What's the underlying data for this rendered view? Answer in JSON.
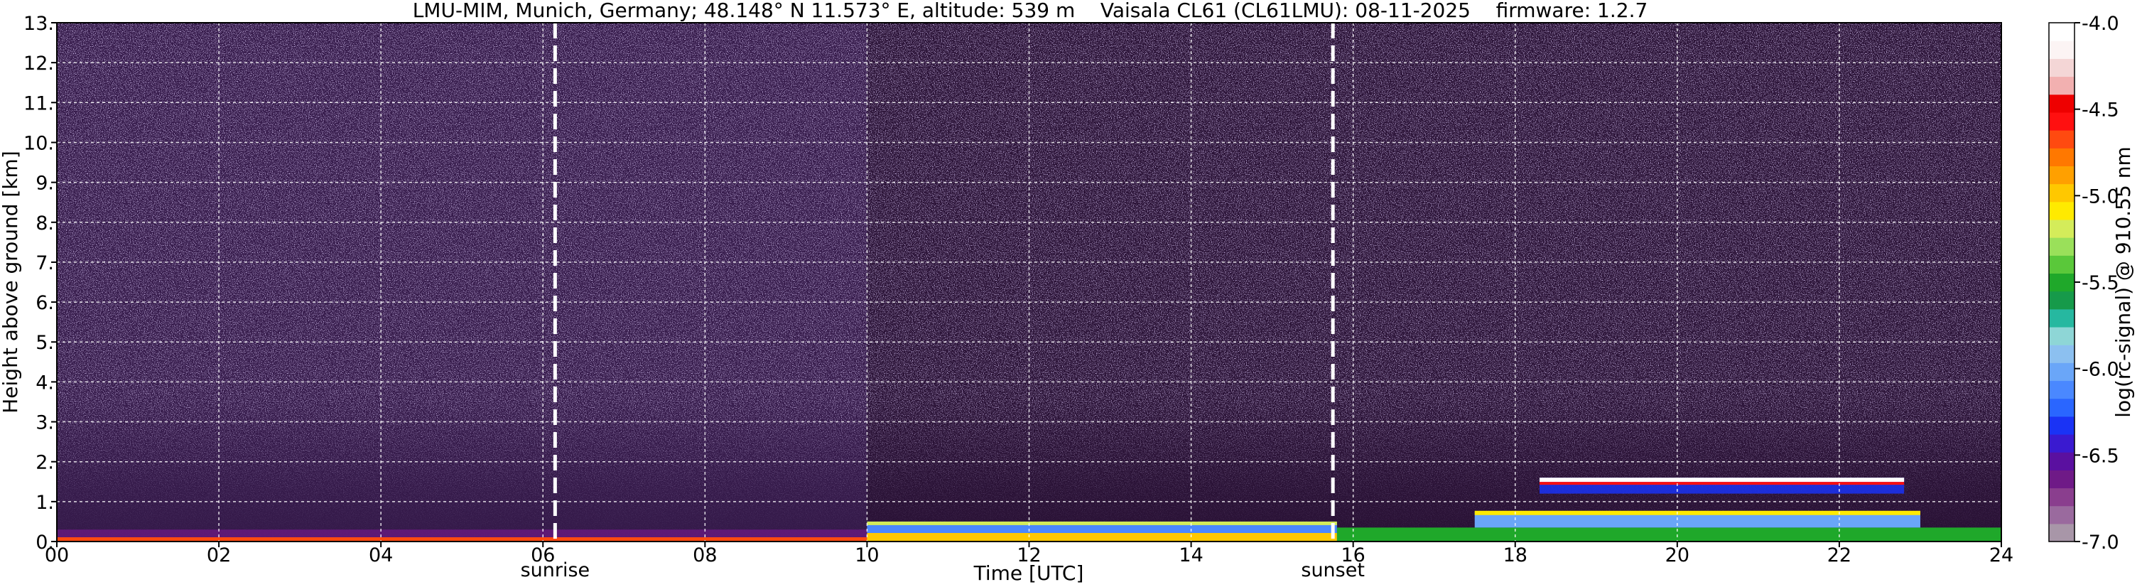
{
  "chart_data": {
    "type": "heatmap",
    "title": "LMU-MIM, Munich, Germany; 48.148° N 11.573° E, altitude: 539 m    Vaisala CL61 (CL61LMU): 08-11-2025    firmware: 1.2.7",
    "xlabel": "Time [UTC]",
    "ylabel": "Height above ground [km]",
    "xlim": [
      0,
      24
    ],
    "ylim": [
      0,
      13
    ],
    "x_ticks": [
      "00",
      "02",
      "04",
      "06",
      "08",
      "10",
      "12",
      "14",
      "16",
      "18",
      "20",
      "22",
      "24"
    ],
    "x_tick_values": [
      0,
      2,
      4,
      6,
      8,
      10,
      12,
      14,
      16,
      18,
      20,
      22,
      24
    ],
    "y_ticks": [
      "0.",
      "1.",
      "2.",
      "3.",
      "4.",
      "5.",
      "6.",
      "7.",
      "8.",
      "9.",
      "10.",
      "11.",
      "12.",
      "13."
    ],
    "y_tick_values": [
      0,
      1,
      2,
      3,
      4,
      5,
      6,
      7,
      8,
      9,
      10,
      11,
      12,
      13
    ],
    "grid": true,
    "grid_style": "white dashed",
    "annotations": [
      {
        "label": "sunrise",
        "x": 6.15
      },
      {
        "label": "sunset",
        "x": 15.75
      }
    ],
    "colorbar": {
      "label": "log(rc-signal) @ 910.55 nm",
      "range": [
        -7.0,
        -4.0
      ],
      "ticks": [
        "-4.0",
        "-4.5",
        "-5.0",
        "-5.5",
        "-6.0",
        "-6.5",
        "-7.0"
      ],
      "tick_values": [
        -4.0,
        -4.5,
        -5.0,
        -5.5,
        -6.0,
        -6.5,
        -7.0
      ],
      "colors": [
        "#a896a8",
        "#9a6a9e",
        "#8a3e8e",
        "#6f1a87",
        "#5a10a0",
        "#3a1ad0",
        "#1a33f5",
        "#2a66ff",
        "#4a88ff",
        "#6aa6f8",
        "#8cc0f0",
        "#8ed6d6",
        "#26b8a0",
        "#169a4a",
        "#1fa82a",
        "#5ac83a",
        "#9ae05a",
        "#d4ec5a",
        "#ffea00",
        "#ffc800",
        "#ffa000",
        "#ff7800",
        "#ff4a10",
        "#ff1010",
        "#ee0000",
        "#f2b0b0",
        "#f4d6d6",
        "#fcf4f4",
        "#ffffff"
      ]
    },
    "features": [
      {
        "name": "surface backscatter layer",
        "x_range": [
          0,
          24
        ],
        "height_km": [
          0,
          0.3
        ]
      },
      {
        "name": "boundary layer",
        "x_range": [
          10,
          15.8
        ],
        "height_km": [
          0,
          0.5
        ]
      },
      {
        "name": "cloud layer",
        "x_range": [
          18.3,
          22.8
        ],
        "height_km": [
          1.2,
          1.6
        ]
      }
    ]
  }
}
